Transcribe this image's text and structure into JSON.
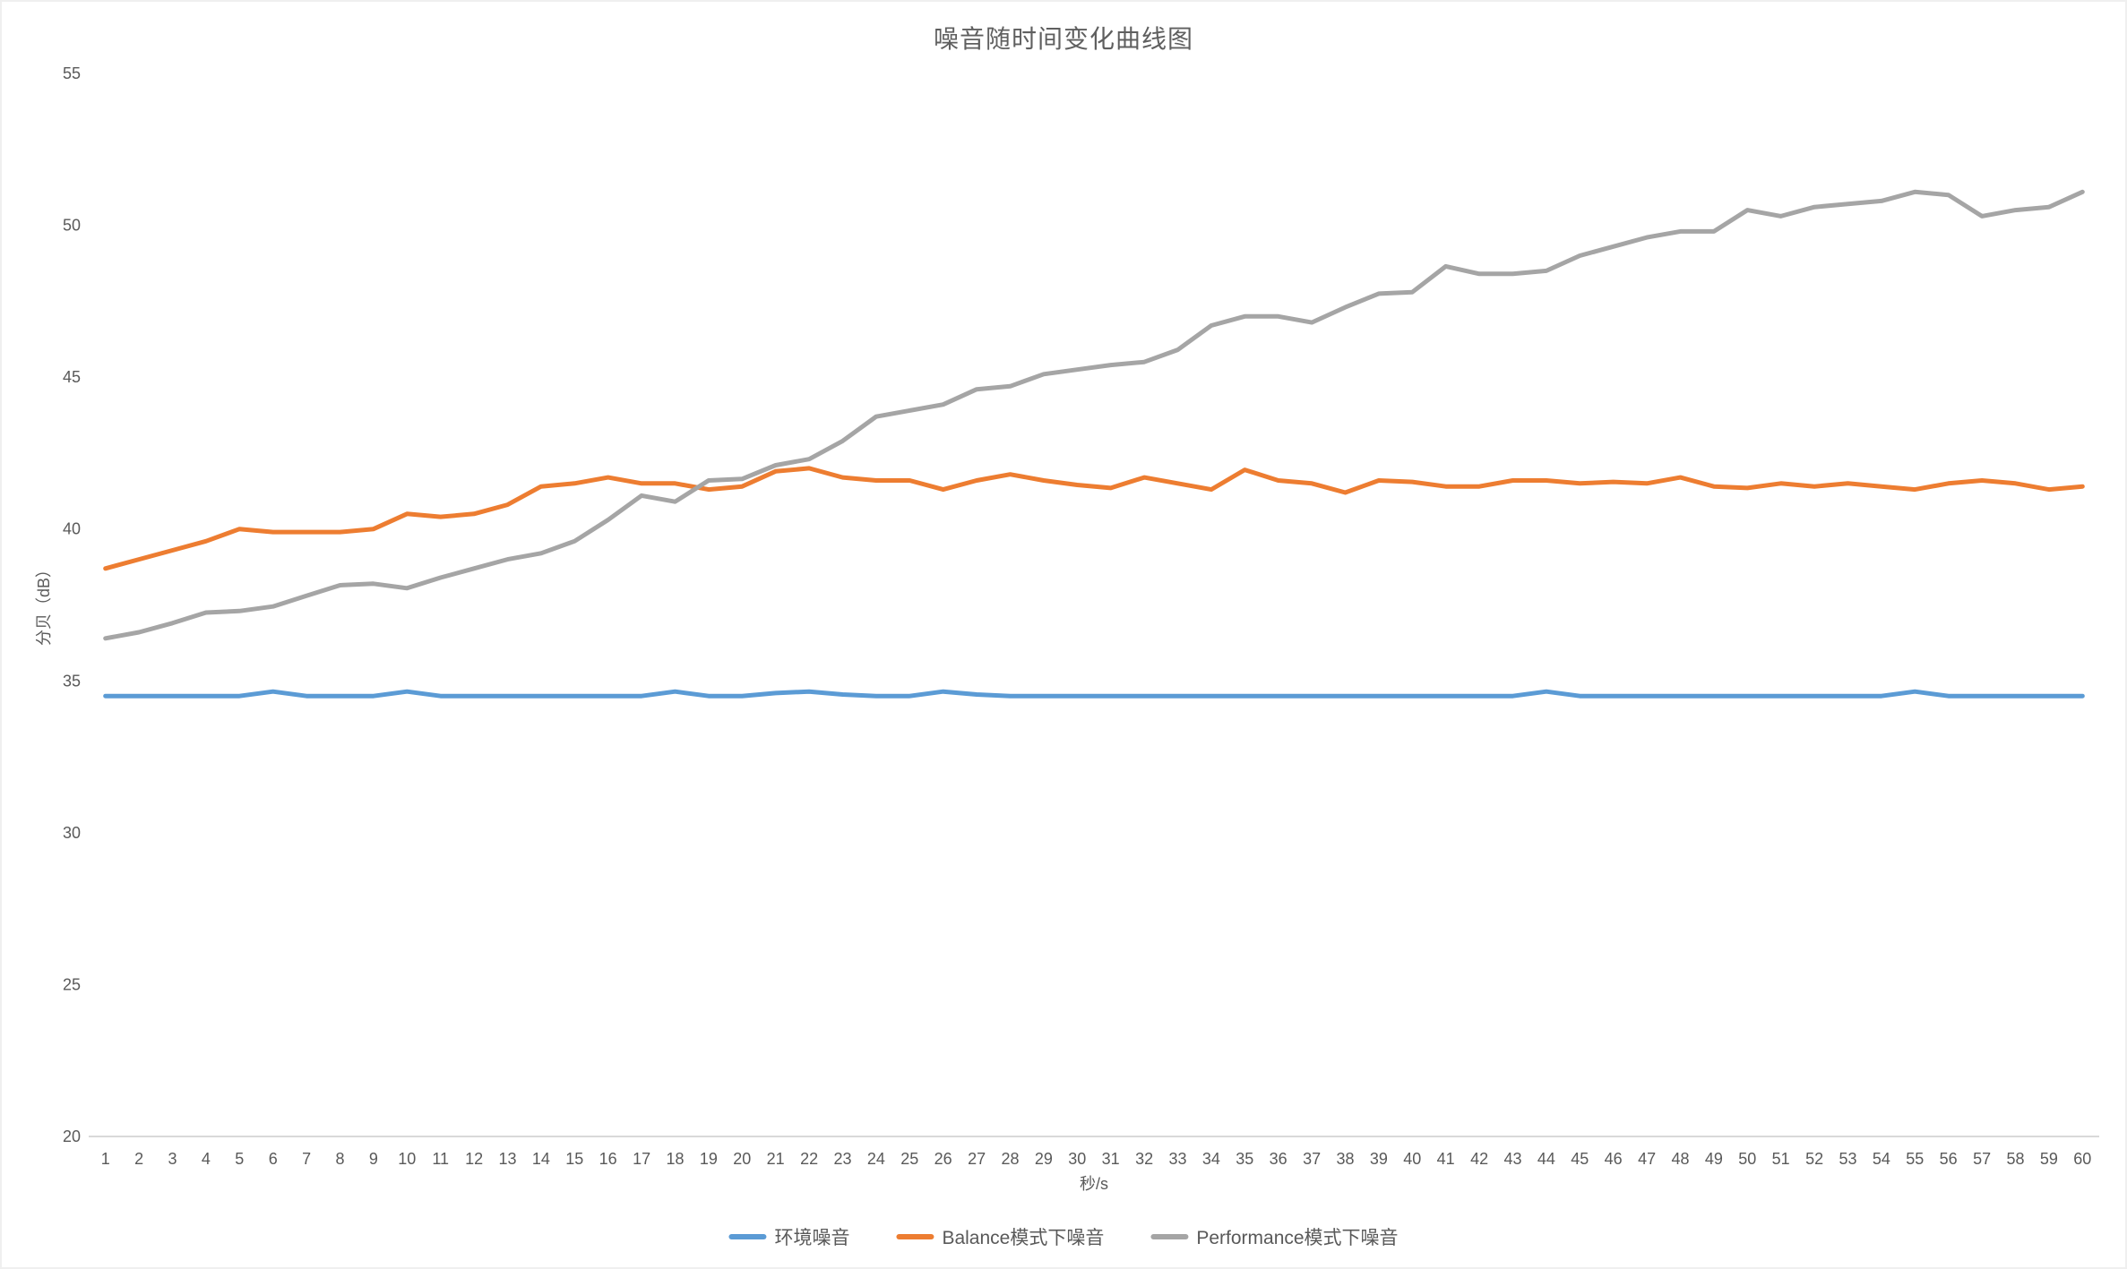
{
  "chart": {
    "background": "#ffffff",
    "axis_line_color": "#d9d9d9",
    "text_color": "#595959",
    "title_color": "#5f5f5f"
  },
  "chart_data": {
    "type": "line",
    "title": "噪音随时间变化曲线图",
    "xlabel": "秒/s",
    "ylabel": "分贝（dB）",
    "ylim": [
      20,
      55
    ],
    "ytick_step": 5,
    "grid": false,
    "legend_position": "bottom",
    "x": [
      1,
      2,
      3,
      4,
      5,
      6,
      7,
      8,
      9,
      10,
      11,
      12,
      13,
      14,
      15,
      16,
      17,
      18,
      19,
      20,
      21,
      22,
      23,
      24,
      25,
      26,
      27,
      28,
      29,
      30,
      31,
      32,
      33,
      34,
      35,
      36,
      37,
      38,
      39,
      40,
      41,
      42,
      43,
      44,
      45,
      46,
      47,
      48,
      49,
      50,
      51,
      52,
      53,
      54,
      55,
      56,
      57,
      58,
      59,
      60
    ],
    "series": [
      {
        "name": "环境噪音",
        "color": "#5b9bd5",
        "values": [
          34.5,
          34.5,
          34.5,
          34.5,
          34.5,
          34.65,
          34.5,
          34.5,
          34.5,
          34.65,
          34.5,
          34.5,
          34.5,
          34.5,
          34.5,
          34.5,
          34.5,
          34.65,
          34.5,
          34.5,
          34.6,
          34.65,
          34.55,
          34.5,
          34.5,
          34.65,
          34.55,
          34.5,
          34.5,
          34.5,
          34.5,
          34.5,
          34.5,
          34.5,
          34.5,
          34.5,
          34.5,
          34.5,
          34.5,
          34.5,
          34.5,
          34.5,
          34.5,
          34.65,
          34.5,
          34.5,
          34.5,
          34.5,
          34.5,
          34.5,
          34.5,
          34.5,
          34.5,
          34.5,
          34.65,
          34.5,
          34.5,
          34.5,
          34.5,
          34.5
        ]
      },
      {
        "name": "Balance模式下噪音",
        "color": "#ed7d31",
        "values": [
          38.7,
          39.0,
          39.3,
          39.6,
          40.0,
          39.9,
          39.9,
          39.9,
          40.0,
          40.5,
          40.4,
          40.5,
          40.8,
          41.4,
          41.5,
          41.7,
          41.5,
          41.5,
          41.3,
          41.4,
          41.9,
          42.0,
          41.7,
          41.6,
          41.6,
          41.3,
          41.6,
          41.8,
          41.6,
          41.45,
          41.35,
          41.7,
          41.5,
          41.3,
          41.95,
          41.6,
          41.5,
          41.2,
          41.6,
          41.55,
          41.4,
          41.4,
          41.6,
          41.6,
          41.5,
          41.55,
          41.5,
          41.7,
          41.4,
          41.35,
          41.5,
          41.4,
          41.5,
          41.4,
          41.3,
          41.5,
          41.6,
          41.5,
          41.3,
          41.4
        ]
      },
      {
        "name": "Performance模式下噪音",
        "color": "#a5a5a5",
        "values": [
          36.4,
          36.6,
          36.9,
          37.25,
          37.3,
          37.45,
          37.8,
          38.15,
          38.2,
          38.05,
          38.4,
          38.7,
          39.0,
          39.2,
          39.6,
          40.3,
          41.1,
          40.9,
          41.6,
          41.65,
          42.1,
          42.3,
          42.9,
          43.7,
          43.9,
          44.1,
          44.6,
          44.7,
          45.1,
          45.25,
          45.4,
          45.5,
          45.9,
          46.7,
          47.0,
          47.0,
          46.8,
          47.3,
          47.75,
          47.8,
          48.65,
          48.4,
          48.4,
          48.5,
          49.0,
          49.3,
          49.6,
          49.8,
          49.8,
          50.5,
          50.3,
          50.6,
          50.7,
          50.8,
          51.1,
          51.0,
          50.3,
          50.5,
          50.6,
          51.1
        ]
      }
    ]
  }
}
